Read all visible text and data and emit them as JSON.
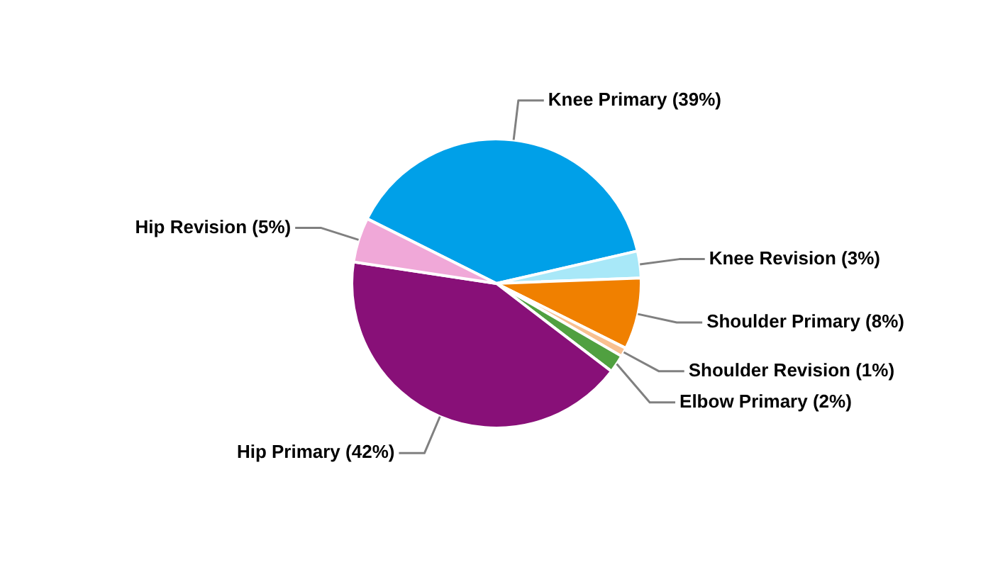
{
  "chart_data": {
    "type": "pie",
    "categories": [
      "Knee Primary",
      "Knee Revision",
      "Shoulder Primary",
      "Shoulder Revision",
      "Elbow Primary",
      "Hip Primary",
      "Hip Revision"
    ],
    "values": [
      39,
      3,
      8,
      1,
      2,
      42,
      5
    ],
    "colors": [
      "#00a0e8",
      "#a8e8f8",
      "#f08000",
      "#f8c090",
      "#50a040",
      "#881078",
      "#f0a8d8"
    ],
    "value_labels": [
      "(39%)",
      "(3%)",
      "(8%)",
      "(1%)",
      "(2%)",
      "(42%)",
      "(5%)"
    ]
  }
}
